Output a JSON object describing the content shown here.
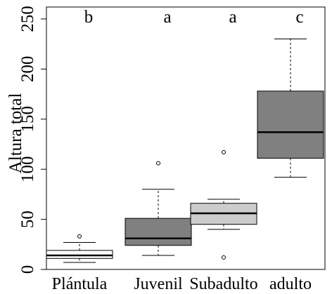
{
  "chart_data": {
    "type": "box",
    "title": "",
    "xlabel": "",
    "ylabel": "Altura total",
    "ylim": [
      0,
      250
    ],
    "yticks": [
      0,
      50,
      100,
      150,
      200,
      250
    ],
    "grid": false,
    "legend": "none",
    "categories": [
      "Plántula",
      "Juvenil",
      "Subadulto",
      "adulto"
    ],
    "significance_letters": [
      "b",
      "a",
      "a",
      "c"
    ],
    "boxes": [
      {
        "category": "Plántula",
        "whisker_low": 7,
        "q1": 11,
        "median": 14,
        "q3": 19,
        "whisker_high": 27,
        "outliers": [
          33
        ],
        "fill": "#ffffff"
      },
      {
        "category": "Juvenil",
        "whisker_low": 14,
        "q1": 24,
        "median": 31,
        "q3": 51,
        "whisker_high": 80,
        "outliers": [
          106
        ],
        "fill": "#808080"
      },
      {
        "category": "Subadulto",
        "whisker_low": 40,
        "q1": 45,
        "median": 56,
        "q3": 66,
        "whisker_high": 70,
        "outliers": [
          117,
          12
        ],
        "fill": "#cccccc"
      },
      {
        "category": "adulto",
        "whisker_low": 92,
        "q1": 111,
        "median": 137,
        "q3": 178,
        "whisker_high": 230,
        "outliers": [],
        "fill": "#808080"
      }
    ]
  }
}
